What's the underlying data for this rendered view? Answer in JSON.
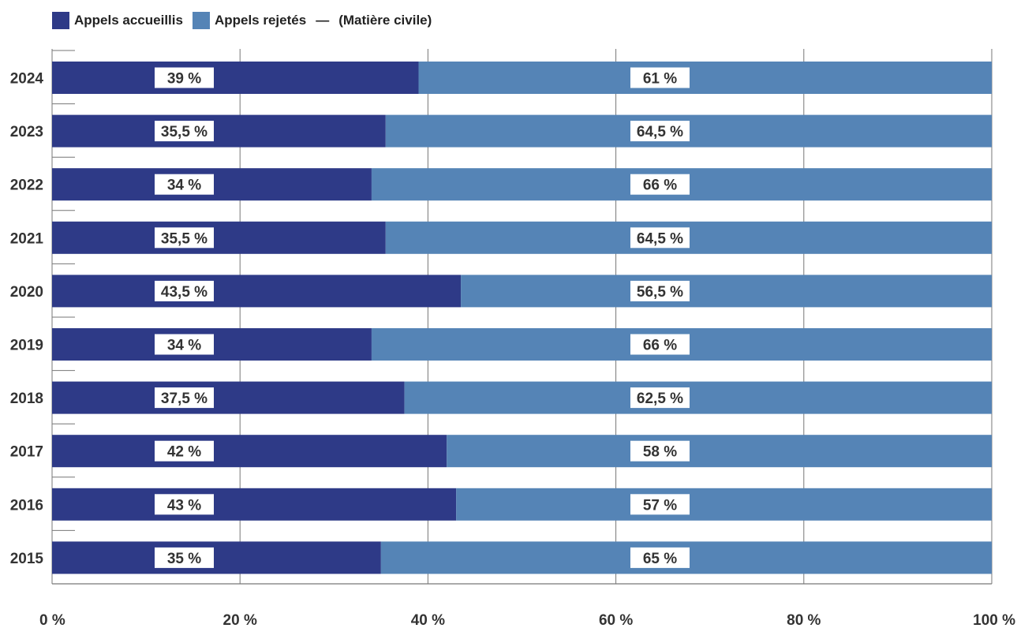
{
  "colors": {
    "accueillis": "#2e3a87",
    "rejetes": "#5584b6",
    "grid": "#777777",
    "label_bg": "#ffffff",
    "text": "#333333"
  },
  "legend": {
    "item1": "Appels accueillis",
    "item2": "Appels rejetés",
    "separator": "—",
    "note": "(Matière civile)"
  },
  "chart_data": {
    "type": "bar",
    "orientation": "horizontal",
    "stacked": true,
    "categories": [
      "2024",
      "2023",
      "2022",
      "2021",
      "2020",
      "2019",
      "2018",
      "2017",
      "2016",
      "2015"
    ],
    "series": [
      {
        "name": "Appels accueillis",
        "values": [
          39,
          35.5,
          34,
          35.5,
          43.5,
          34,
          37.5,
          42,
          43,
          35
        ],
        "labels": [
          "39 %",
          "35,5 %",
          "34 %",
          "35,5 %",
          "43,5 %",
          "34 %",
          "37,5 %",
          "42 %",
          "43 %",
          "35 %"
        ]
      },
      {
        "name": "Appels rejetés",
        "values": [
          61,
          64.5,
          66,
          64.5,
          56.5,
          66,
          62.5,
          58,
          57,
          65
        ],
        "labels": [
          "61 %",
          "64,5 %",
          "66 %",
          "64,5 %",
          "56,5 %",
          "66 %",
          "62,5 %",
          "58 %",
          "57 %",
          "65 %"
        ]
      }
    ],
    "x_ticks": [
      "0 %",
      "20 %",
      "40 %",
      "60 %",
      "80 %",
      "100 %"
    ],
    "xlim": [
      0,
      100
    ],
    "grid": true,
    "legend_position": "top-left"
  }
}
